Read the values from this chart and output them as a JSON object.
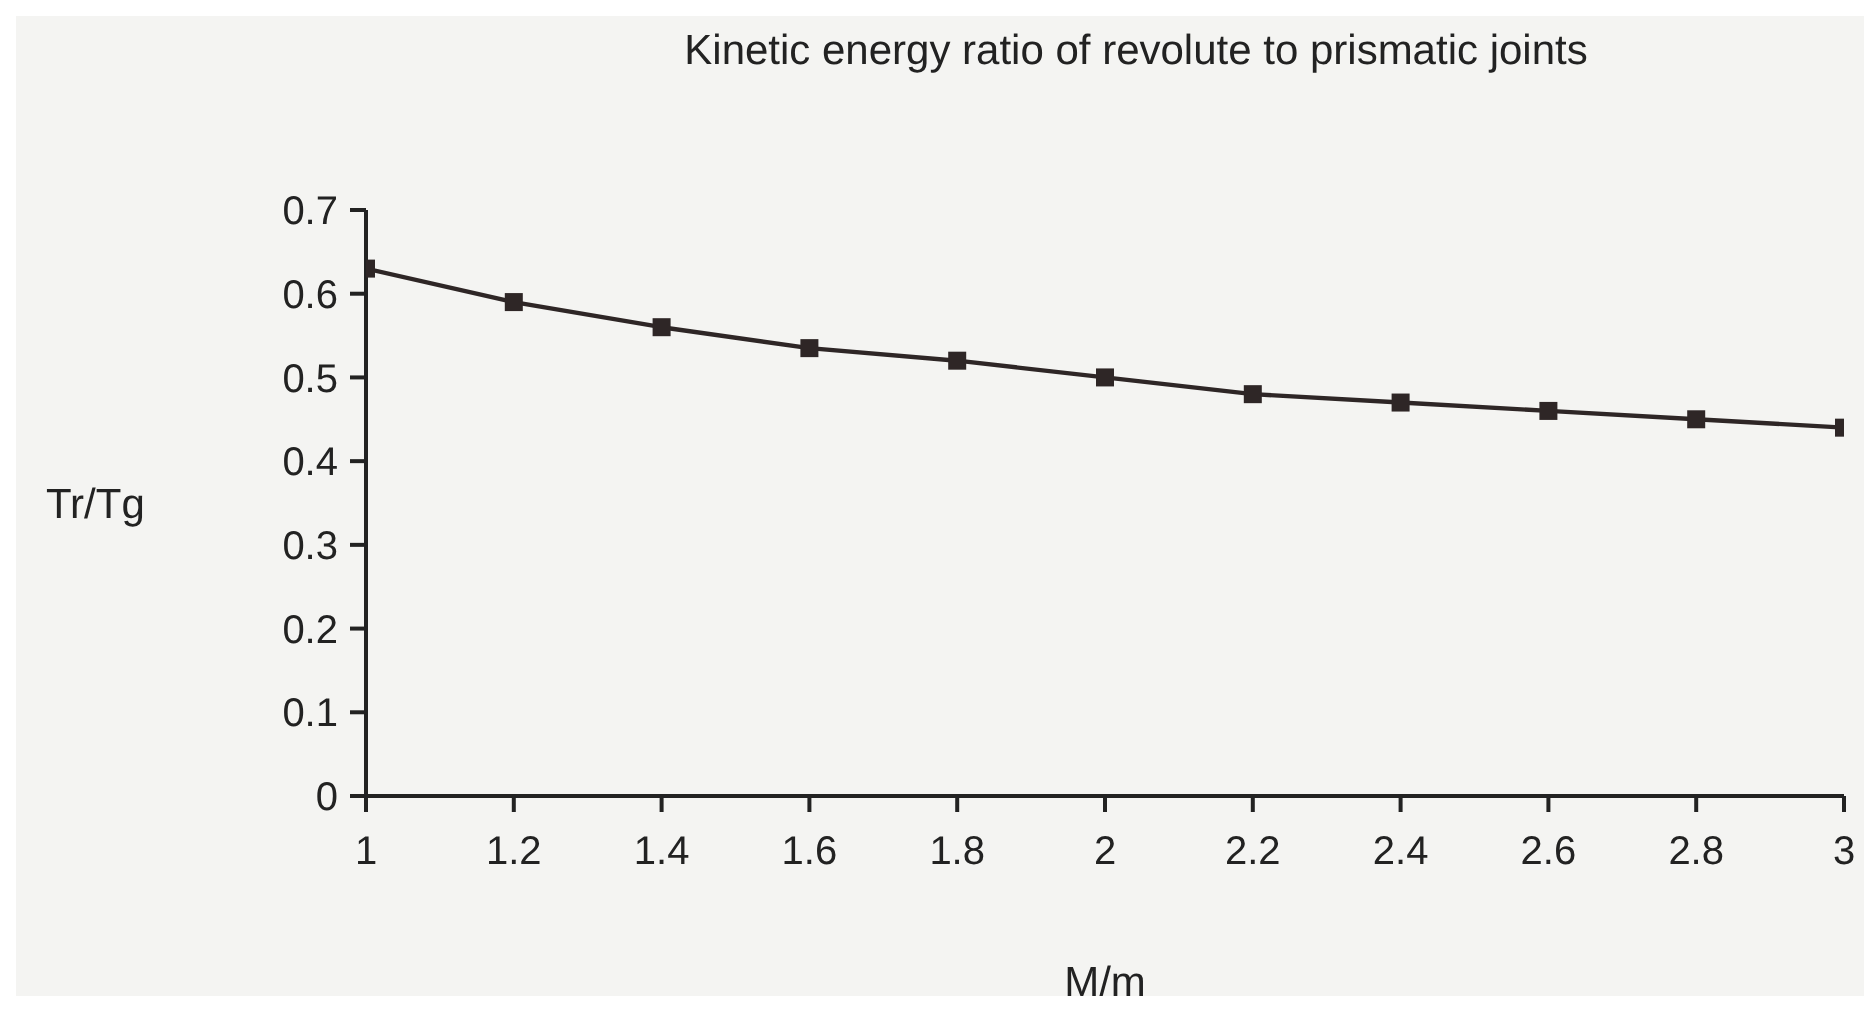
{
  "chart_data": {
    "type": "line",
    "title": "Kinetic energy ratio of revolute to prismatic joints",
    "xlabel": "M/m",
    "ylabel": "Tr/Tg",
    "x": [
      1,
      1.2,
      1.4,
      1.6,
      1.8,
      2,
      2.2,
      2.4,
      2.6,
      2.8,
      3
    ],
    "series": [
      {
        "color": "#2e2626",
        "values": [
          0.63,
          0.59,
          0.56,
          0.535,
          0.52,
          0.5,
          0.48,
          0.47,
          0.46,
          0.45,
          0.44
        ]
      }
    ],
    "xlim": [
      1,
      3
    ],
    "xticks": [
      1,
      1.2,
      1.4,
      1.6,
      1.8,
      2,
      2.2,
      2.4,
      2.6,
      2.8,
      3
    ],
    "ylim": [
      0,
      0.7
    ],
    "yticks": [
      0,
      0.1,
      0.2,
      0.3,
      0.4,
      0.5,
      0.6,
      0.7
    ],
    "grid": false,
    "legend": false,
    "marker": "square",
    "line_style": "solid"
  }
}
